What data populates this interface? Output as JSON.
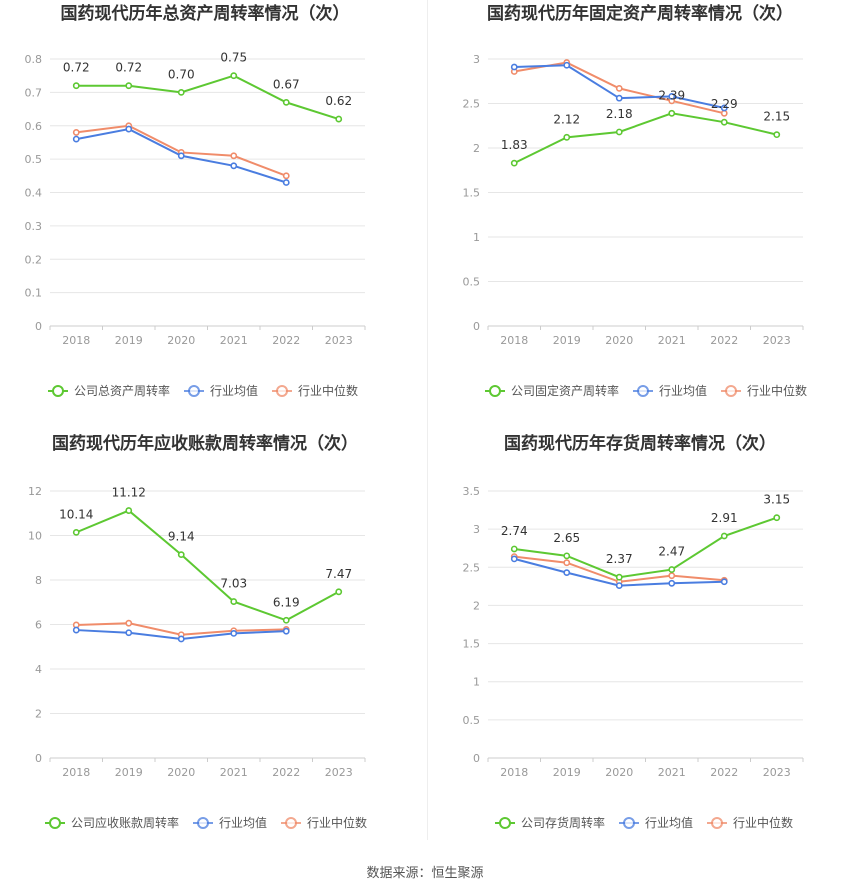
{
  "source": "数据来源：恒生聚源",
  "colors": {
    "company": "#5dc832",
    "avg": "#4a7de0",
    "median": "#f08c6a"
  },
  "chart_data": [
    {
      "type": "line",
      "title": "国药现代历年总资产周转率情况（次）",
      "categories": [
        "2018",
        "2019",
        "2020",
        "2021",
        "2022",
        "2023"
      ],
      "ylim": [
        0,
        0.8
      ],
      "yticks": [
        "0",
        "0.1",
        "0.2",
        "0.3",
        "0.4",
        "0.5",
        "0.6",
        "0.7",
        "0.8"
      ],
      "series": [
        {
          "name": "公司总资产周转率",
          "role": "company",
          "values": [
            0.72,
            0.72,
            0.7,
            0.75,
            0.67,
            0.62
          ],
          "labels": [
            "0.72",
            "0.72",
            "0.70",
            "0.75",
            "0.67",
            "0.62"
          ]
        },
        {
          "name": "行业均值",
          "role": "avg",
          "values": [
            0.56,
            0.59,
            0.51,
            0.48,
            0.43,
            null
          ]
        },
        {
          "name": "行业中位数",
          "role": "median",
          "values": [
            0.58,
            0.6,
            0.52,
            0.51,
            0.45,
            null
          ]
        }
      ],
      "legend_position": "bottom"
    },
    {
      "type": "line",
      "title": "国药现代历年固定资产周转率情况（次）",
      "categories": [
        "2018",
        "2019",
        "2020",
        "2021",
        "2022",
        "2023"
      ],
      "ylim": [
        0,
        3
      ],
      "yticks": [
        "0",
        "0.5",
        "1",
        "1.5",
        "2",
        "2.5",
        "3"
      ],
      "series": [
        {
          "name": "公司固定资产周转率",
          "role": "company",
          "values": [
            1.83,
            2.12,
            2.18,
            2.39,
            2.29,
            2.15
          ],
          "labels": [
            "1.83",
            "2.12",
            "2.18",
            "2.39",
            "2.29",
            "2.15"
          ]
        },
        {
          "name": "行业均值",
          "role": "avg",
          "values": [
            2.91,
            2.93,
            2.56,
            2.58,
            2.45,
            null
          ]
        },
        {
          "name": "行业中位数",
          "role": "median",
          "values": [
            2.86,
            2.96,
            2.67,
            2.53,
            2.39,
            null
          ]
        }
      ],
      "legend_position": "bottom"
    },
    {
      "type": "line",
      "title": "国药现代历年应收账款周转率情况（次）",
      "categories": [
        "2018",
        "2019",
        "2020",
        "2021",
        "2022",
        "2023"
      ],
      "ylim": [
        0,
        12
      ],
      "yticks": [
        "0",
        "2",
        "4",
        "6",
        "8",
        "10",
        "12"
      ],
      "series": [
        {
          "name": "公司应收账款周转率",
          "role": "company",
          "values": [
            10.14,
            11.12,
            9.14,
            7.03,
            6.19,
            7.47
          ],
          "labels": [
            "10.14",
            "11.12",
            "9.14",
            "7.03",
            "6.19",
            "7.47"
          ]
        },
        {
          "name": "行业均值",
          "role": "avg",
          "values": [
            5.75,
            5.63,
            5.35,
            5.6,
            5.7,
            null
          ]
        },
        {
          "name": "行业中位数",
          "role": "median",
          "values": [
            5.98,
            6.06,
            5.54,
            5.72,
            5.78,
            null
          ]
        }
      ],
      "legend_position": "bottom"
    },
    {
      "type": "line",
      "title": "国药现代历年存货周转率情况（次）",
      "categories": [
        "2018",
        "2019",
        "2020",
        "2021",
        "2022",
        "2023"
      ],
      "ylim": [
        0,
        3.5
      ],
      "yticks": [
        "0",
        "0.5",
        "1",
        "1.5",
        "2",
        "2.5",
        "3",
        "3.5"
      ],
      "series": [
        {
          "name": "公司存货周转率",
          "role": "company",
          "values": [
            2.74,
            2.65,
            2.37,
            2.47,
            2.91,
            3.15
          ],
          "labels": [
            "2.74",
            "2.65",
            "2.37",
            "2.47",
            "2.91",
            "3.15"
          ]
        },
        {
          "name": "行业均值",
          "role": "avg",
          "values": [
            2.61,
            2.43,
            2.26,
            2.29,
            2.31,
            null
          ]
        },
        {
          "name": "行业中位数",
          "role": "median",
          "values": [
            2.64,
            2.56,
            2.31,
            2.39,
            2.33,
            null
          ]
        }
      ],
      "legend_position": "bottom"
    }
  ]
}
